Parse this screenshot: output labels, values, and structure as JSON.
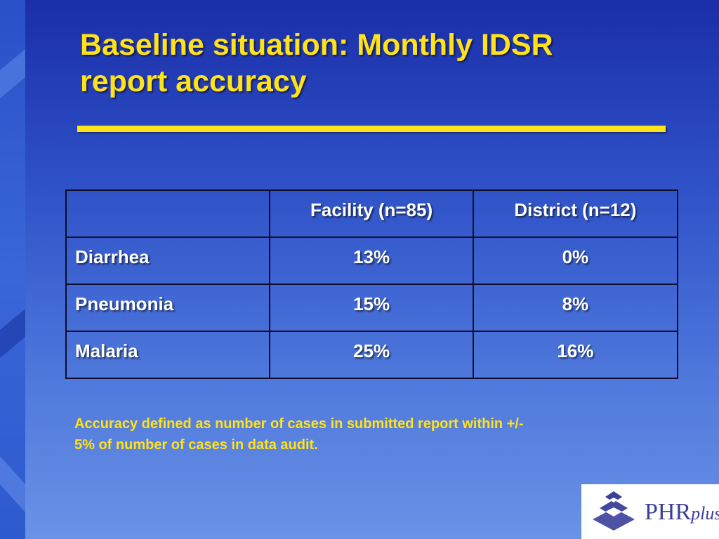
{
  "slide": {
    "title": "Baseline situation: Monthly IDSR\nreport accuracy",
    "footnote": "Accuracy defined as number of cases in submitted report within +/-\n5% of number of cases in data audit.",
    "accent_color": "#ffe21a",
    "text_color": "#ffffff"
  },
  "table": {
    "headers": [
      "",
      "Facility (n=85)",
      "District (n=12)"
    ],
    "rows": [
      {
        "label": "Diarrhea",
        "facility": "13%",
        "district": "0%"
      },
      {
        "label": "Pneumonia",
        "facility": "15%",
        "district": "8%"
      },
      {
        "label": "Malaria",
        "facility": "25%",
        "district": "16%"
      }
    ]
  },
  "logo": {
    "icon": "stacked-pyramid-icon",
    "text_main": "PHR",
    "text_suffix": "plus"
  }
}
